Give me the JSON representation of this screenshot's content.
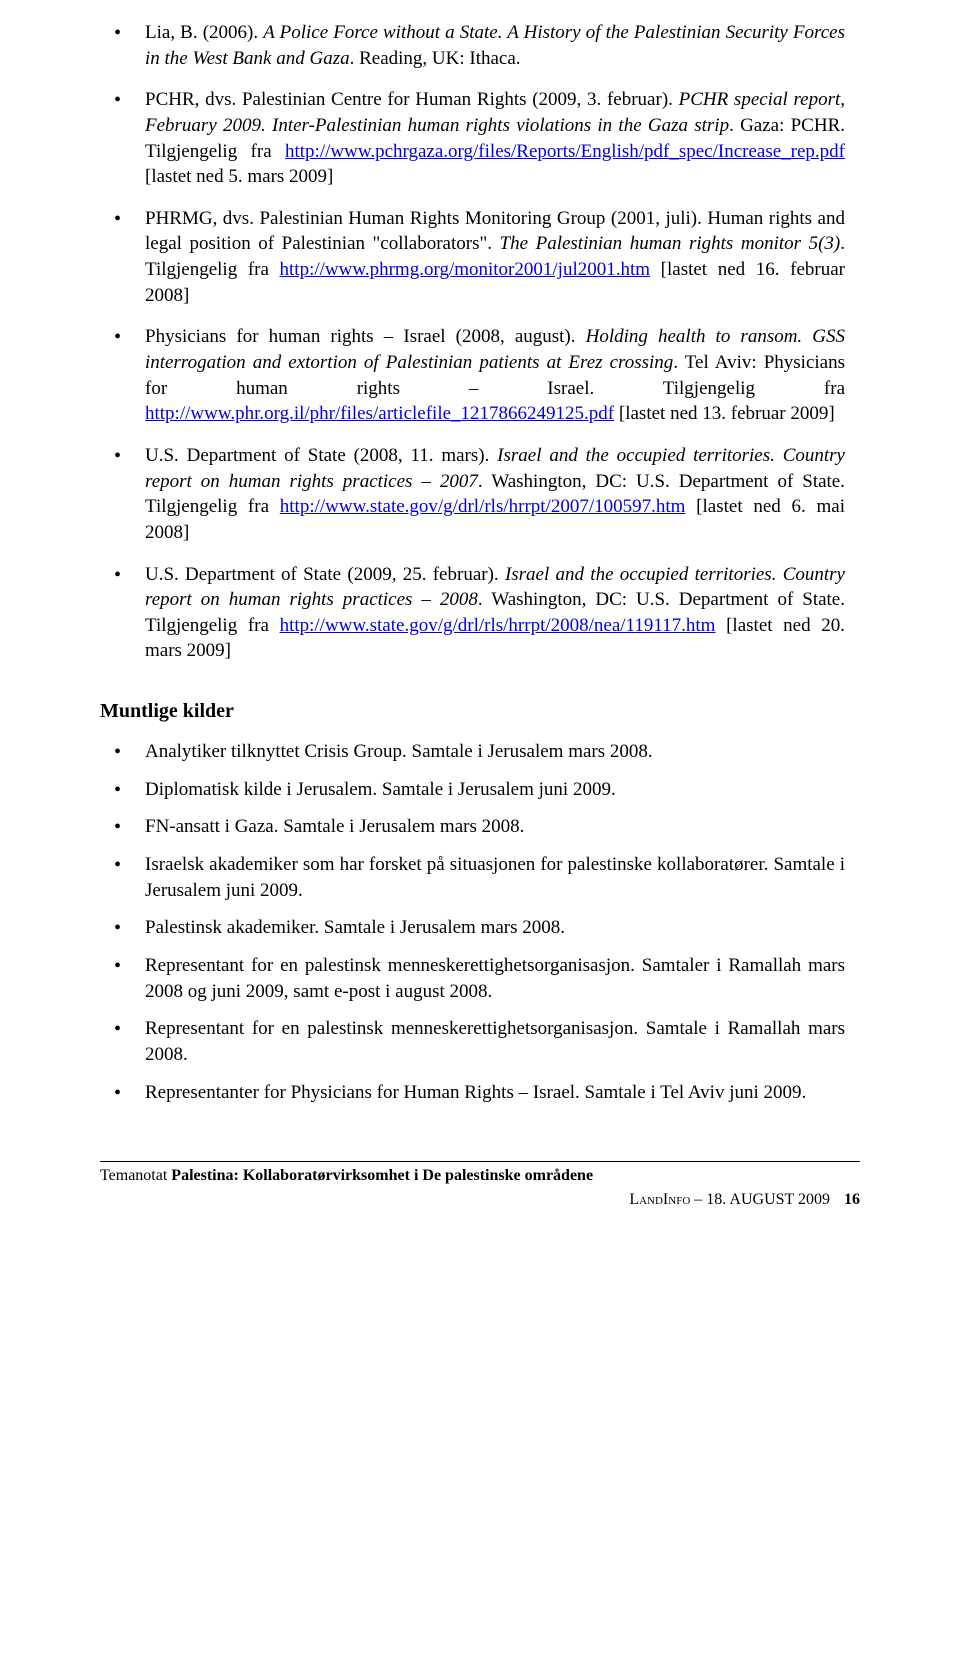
{
  "refs": [
    {
      "pre": "Lia, B. (2006). ",
      "it1": "A Police Force without a State. A History of the Palestinian Security Forces in the West Bank and Gaza",
      "post1": ". Reading, UK: Ithaca."
    },
    {
      "pre": "PCHR, dvs. Palestinian Centre for Human Rights (2009, 3. februar). ",
      "it1": "PCHR special report, February 2009. Inter-Palestinian human rights violations in the Gaza strip",
      "post1": ". Gaza: PCHR. Tilgjengelig fra ",
      "link": "http://www.pchrgaza.org/files/Reports/English/pdf_spec/Increase_rep.pdf",
      "post2": " [lastet ned 5. mars 2009]"
    },
    {
      "pre": "PHRMG, dvs. Palestinian Human Rights Monitoring Group (2001, juli). Human rights and legal position of Palestinian \"collaborators\". ",
      "it1": "The Palestinian human rights monitor 5(3)",
      "post1": ". Tilgjengelig fra ",
      "link": "http://www.phrmg.org/monitor2001/jul2001.htm",
      "post2": " [lastet ned 16. februar 2008]"
    },
    {
      "pre": "Physicians for human rights – Israel (2008, august). ",
      "it1": "Holding health to ransom. GSS interrogation and extortion of Palestinian patients at Erez crossing",
      "post1": ". Tel Aviv: Physicians for human rights – Israel. Tilgjengelig fra ",
      "link": "http://www.phr.org.il/phr/files/articlefile_1217866249125.pdf",
      "post2": " [lastet ned 13. februar 2009]"
    },
    {
      "pre": "U.S. Department of State (2008, 11. mars). ",
      "it1": "Israel and the occupied territories. Country report on human rights practices – 2007",
      "post1": ". Washington, DC: U.S. Department of State. Tilgjengelig fra ",
      "link": "http://www.state.gov/g/drl/rls/hrrpt/2007/100597.htm",
      "post2": " [lastet ned 6. mai 2008]"
    },
    {
      "pre": "U.S. Department of State (2009, 25. februar). ",
      "it1": "Israel and the occupied territories. Country report on human rights practices – 2008",
      "post1": ". Washington, DC: U.S. Department of State. Tilgjengelig fra ",
      "link": "http://www.state.gov/g/drl/rls/hrrpt/2008/nea/119117.htm",
      "post2": " [lastet ned 20. mars 2009]"
    }
  ],
  "oral_heading": "Muntlige kilder",
  "oral": [
    "Analytiker tilknyttet Crisis Group. Samtale i Jerusalem mars 2008.",
    "Diplomatisk kilde i Jerusalem. Samtale i Jerusalem juni 2009.",
    "FN-ansatt i Gaza. Samtale i Jerusalem mars 2008.",
    "Israelsk akademiker som har forsket på situasjonen for palestinske kollaboratører. Samtale i Jerusalem juni 2009.",
    "Palestinsk akademiker. Samtale i Jerusalem mars 2008.",
    "Representant for en palestinsk menneskerettighetsorganisasjon. Samtaler i Ramallah mars 2008 og juni 2009, samt e-post i august 2008.",
    "Representant for en palestinsk menneskerettighetsorganisasjon. Samtale i Ramallah mars 2008.",
    "Representanter for Physicians for Human Rights – Israel. Samtale i Tel Aviv juni 2009."
  ],
  "footer": {
    "tema_prefix": "Temanotat ",
    "tema_title": "Palestina: Kollaboratørvirksomhet i De palestinske områdene",
    "landinfo": "LandInfo",
    "date": " – 18. AUGUST 2009",
    "pageno": "16"
  }
}
